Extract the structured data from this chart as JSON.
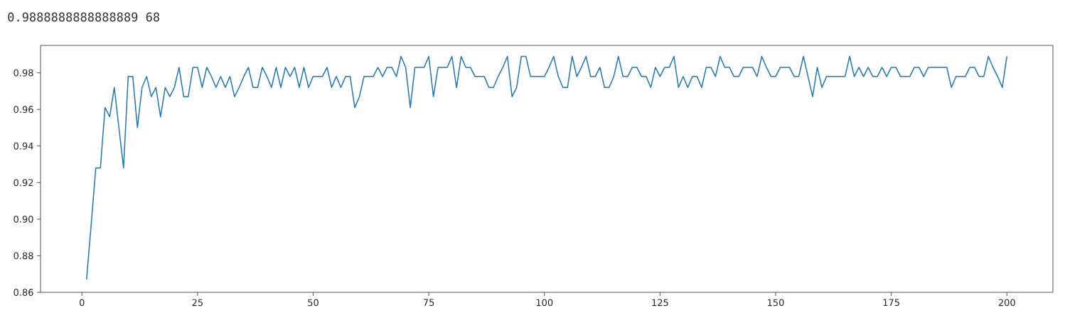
{
  "chart_data": {
    "type": "line",
    "annotations": [
      "0.9888888888888889 68"
    ],
    "x": [
      1,
      2,
      3,
      4,
      5,
      6,
      7,
      8,
      9,
      10,
      11,
      12,
      13,
      14,
      15,
      16,
      17,
      18,
      19,
      20,
      21,
      22,
      23,
      24,
      25,
      26,
      27,
      28,
      29,
      30,
      31,
      32,
      33,
      34,
      35,
      36,
      37,
      38,
      39,
      40,
      41,
      42,
      43,
      44,
      45,
      46,
      47,
      48,
      49,
      50,
      51,
      52,
      53,
      54,
      55,
      56,
      57,
      58,
      59,
      60,
      61,
      62,
      63,
      64,
      65,
      66,
      67,
      68,
      69,
      70,
      71,
      72,
      73,
      74,
      75,
      76,
      77,
      78,
      79,
      80,
      81,
      82,
      83,
      84,
      85,
      86,
      87,
      88,
      89,
      90,
      91,
      92,
      93,
      94,
      95,
      96,
      97,
      98,
      99,
      100,
      101,
      102,
      103,
      104,
      105,
      106,
      107,
      108,
      109,
      110,
      111,
      112,
      113,
      114,
      115,
      116,
      117,
      118,
      119,
      120,
      121,
      122,
      123,
      124,
      125,
      126,
      127,
      128,
      129,
      130,
      131,
      132,
      133,
      134,
      135,
      136,
      137,
      138,
      139,
      140,
      141,
      142,
      143,
      144,
      145,
      146,
      147,
      148,
      149,
      150,
      151,
      152,
      153,
      154,
      155,
      156,
      157,
      158,
      159,
      160,
      161,
      162,
      163,
      164,
      165,
      166,
      167,
      168,
      169,
      170,
      171,
      172,
      173,
      174,
      175,
      176,
      177,
      178,
      179,
      180,
      181,
      182,
      183,
      184,
      185,
      186,
      187,
      188,
      189,
      190,
      191,
      192,
      193,
      194,
      195,
      196,
      197,
      198,
      199,
      200
    ],
    "series": [
      {
        "color": "#1f77b4",
        "values": [
          0.867,
          0.897,
          0.928,
          0.928,
          0.961,
          0.956,
          0.972,
          0.95,
          0.928,
          0.978,
          0.978,
          0.95,
          0.972,
          0.978,
          0.967,
          0.972,
          0.956,
          0.972,
          0.967,
          0.972,
          0.983,
          0.967,
          0.967,
          0.983,
          0.983,
          0.972,
          0.983,
          0.978,
          0.972,
          0.978,
          0.972,
          0.978,
          0.967,
          0.972,
          0.978,
          0.983,
          0.972,
          0.972,
          0.983,
          0.978,
          0.972,
          0.983,
          0.972,
          0.983,
          0.978,
          0.983,
          0.972,
          0.983,
          0.972,
          0.978,
          0.978,
          0.978,
          0.983,
          0.972,
          0.978,
          0.972,
          0.978,
          0.978,
          0.961,
          0.967,
          0.978,
          0.978,
          0.978,
          0.983,
          0.978,
          0.983,
          0.983,
          0.978,
          0.989,
          0.983,
          0.961,
          0.983,
          0.983,
          0.983,
          0.989,
          0.967,
          0.983,
          0.983,
          0.983,
          0.989,
          0.972,
          0.989,
          0.983,
          0.983,
          0.978,
          0.978,
          0.978,
          0.972,
          0.972,
          0.978,
          0.983,
          0.989,
          0.967,
          0.972,
          0.989,
          0.989,
          0.978,
          0.978,
          0.978,
          0.978,
          0.983,
          0.989,
          0.978,
          0.972,
          0.972,
          0.989,
          0.978,
          0.983,
          0.989,
          0.978,
          0.978,
          0.983,
          0.972,
          0.972,
          0.978,
          0.989,
          0.978,
          0.978,
          0.983,
          0.983,
          0.978,
          0.978,
          0.972,
          0.983,
          0.978,
          0.983,
          0.983,
          0.989,
          0.972,
          0.978,
          0.972,
          0.978,
          0.978,
          0.972,
          0.983,
          0.983,
          0.978,
          0.989,
          0.983,
          0.983,
          0.978,
          0.978,
          0.983,
          0.983,
          0.983,
          0.978,
          0.989,
          0.983,
          0.978,
          0.978,
          0.983,
          0.983,
          0.983,
          0.978,
          0.978,
          0.989,
          0.978,
          0.967,
          0.983,
          0.972,
          0.978,
          0.978,
          0.978,
          0.978,
          0.978,
          0.989,
          0.978,
          0.983,
          0.978,
          0.983,
          0.978,
          0.978,
          0.983,
          0.978,
          0.983,
          0.983,
          0.978,
          0.978,
          0.978,
          0.983,
          0.983,
          0.978,
          0.983,
          0.983,
          0.983,
          0.983,
          0.983,
          0.972,
          0.978,
          0.978,
          0.978,
          0.983,
          0.983,
          0.978,
          0.978,
          0.989,
          0.983,
          0.978,
          0.972,
          0.989
        ]
      }
    ],
    "xlim": [
      -8.95,
      209.95
    ],
    "ylim": [
      0.86,
      0.995
    ],
    "xticks": [
      0,
      25,
      50,
      75,
      100,
      125,
      150,
      175,
      200
    ],
    "yticks": [
      0.86,
      0.88,
      {
        "value": 0.9,
        "label": "0.90"
      },
      0.92,
      0.94,
      0.96,
      0.98
    ]
  }
}
